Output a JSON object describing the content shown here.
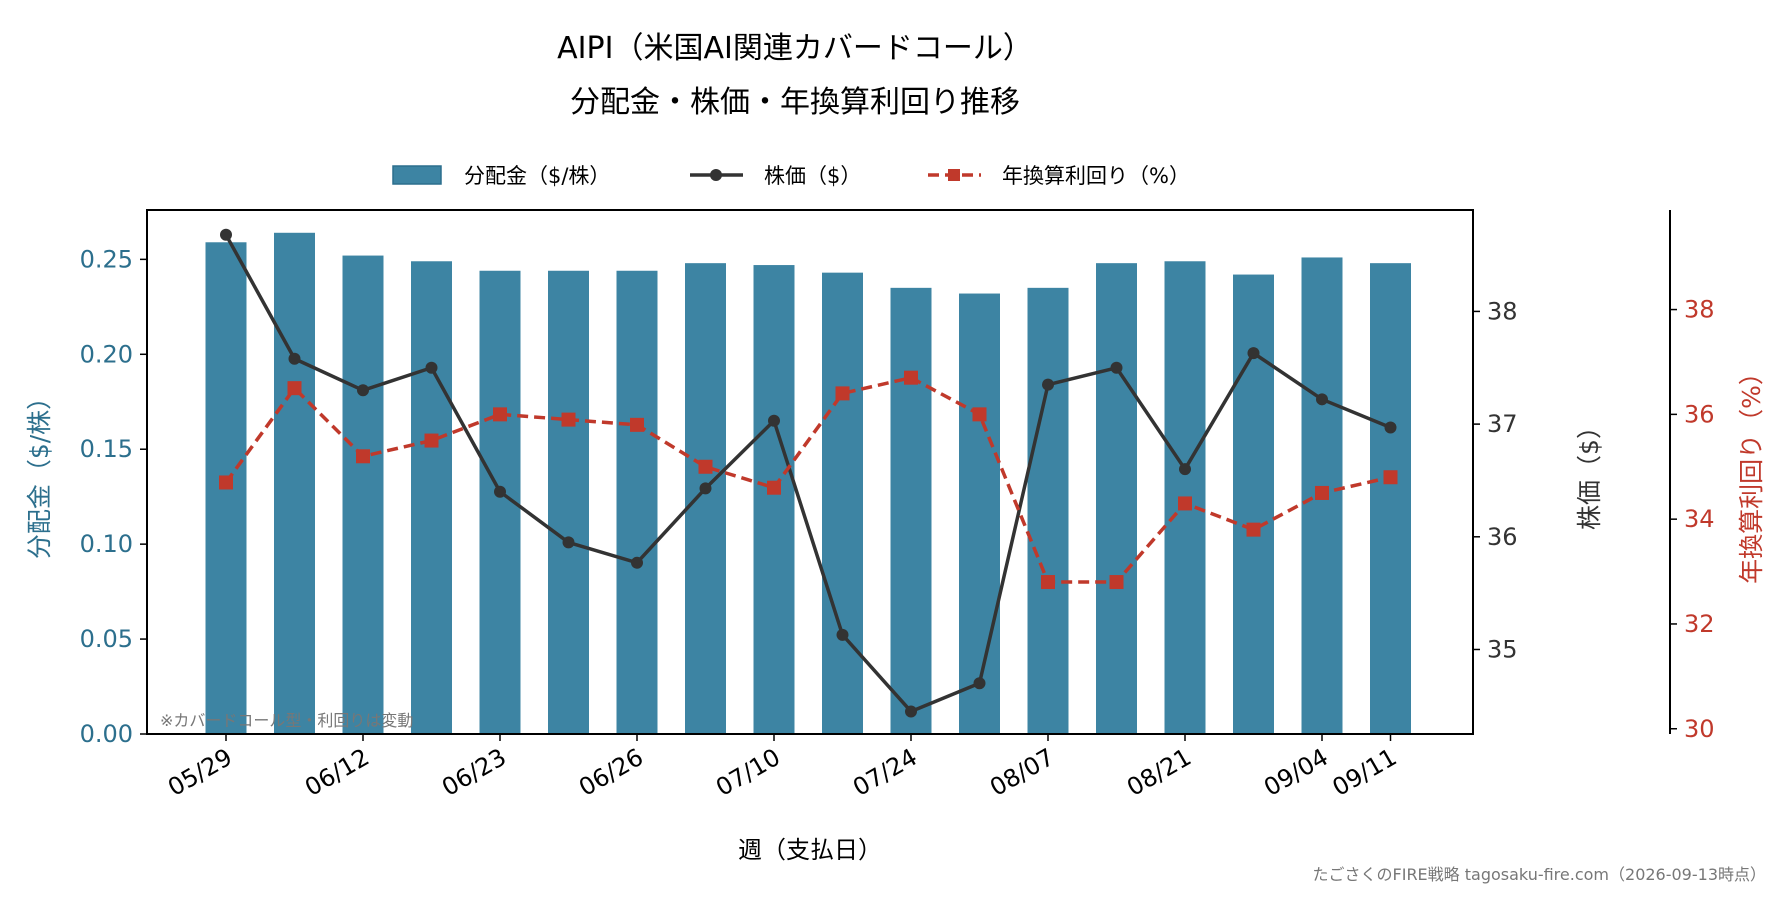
{
  "chart_data": {
    "type": "bar",
    "title_line1": "AIPI（米国AI関連カバードコール）",
    "title_line2": "分配金・株価・年換算利回り推移",
    "xlabel": "週（支払日）",
    "ylabel_left": "分配金（$/株）",
    "ylabel_mid": "株価（$）",
    "ylabel_right": "年換算利回り（%）",
    "legend": {
      "placement": "top-center",
      "entries": [
        "分配金（$/株）",
        "株価（$）",
        "年換算利回り（%）"
      ]
    },
    "x_tick_labels": [
      "05/29",
      "06/12",
      "06/23",
      "06/26",
      "07/10",
      "07/24",
      "08/07",
      "08/21",
      "09/04",
      "09/11"
    ],
    "x_tick_index": [
      0,
      2,
      4,
      6,
      8,
      10,
      12,
      14,
      16,
      17
    ],
    "left_axis": {
      "ylim": [
        0,
        0.276
      ],
      "ticks": [
        "0.00",
        "0.05",
        "0.10",
        "0.15",
        "0.20",
        "0.25"
      ]
    },
    "mid_axis": {
      "ylim": [
        34.25,
        38.9
      ],
      "ticks": [
        "35",
        "36",
        "37",
        "38"
      ]
    },
    "right_axis": {
      "ylim": [
        29.9,
        39.9
      ],
      "ticks": [
        "30",
        "32",
        "34",
        "36",
        "38"
      ]
    },
    "series": [
      {
        "name": "分配金（$/株）",
        "kind": "bar",
        "color": "#3d84a3",
        "values": [
          0.259,
          0.264,
          0.252,
          0.249,
          0.244,
          0.244,
          0.244,
          0.248,
          0.247,
          0.243,
          0.235,
          0.232,
          0.235,
          0.248,
          0.249,
          0.242,
          0.251,
          0.248
        ]
      },
      {
        "name": "株価（$）",
        "kind": "line",
        "color": "#333333",
        "values": [
          38.68,
          37.58,
          37.3,
          37.5,
          36.4,
          35.95,
          35.77,
          36.43,
          37.03,
          35.13,
          34.45,
          34.7,
          37.35,
          37.5,
          36.6,
          37.63,
          37.22,
          36.97
        ]
      },
      {
        "name": "年換算利回り（%）",
        "kind": "line",
        "color": "#c0392b",
        "values": [
          34.7,
          36.5,
          35.2,
          35.5,
          36.0,
          35.9,
          35.8,
          35.0,
          34.6,
          36.4,
          36.7,
          36.0,
          32.8,
          32.8,
          34.3,
          33.8,
          34.5,
          34.8
        ]
      }
    ],
    "note": "※カバードコール型・利回りは変動",
    "footer": "たごさくのFIRE戦略 tagosaku-fire.com（2026-09-13時点）"
  }
}
